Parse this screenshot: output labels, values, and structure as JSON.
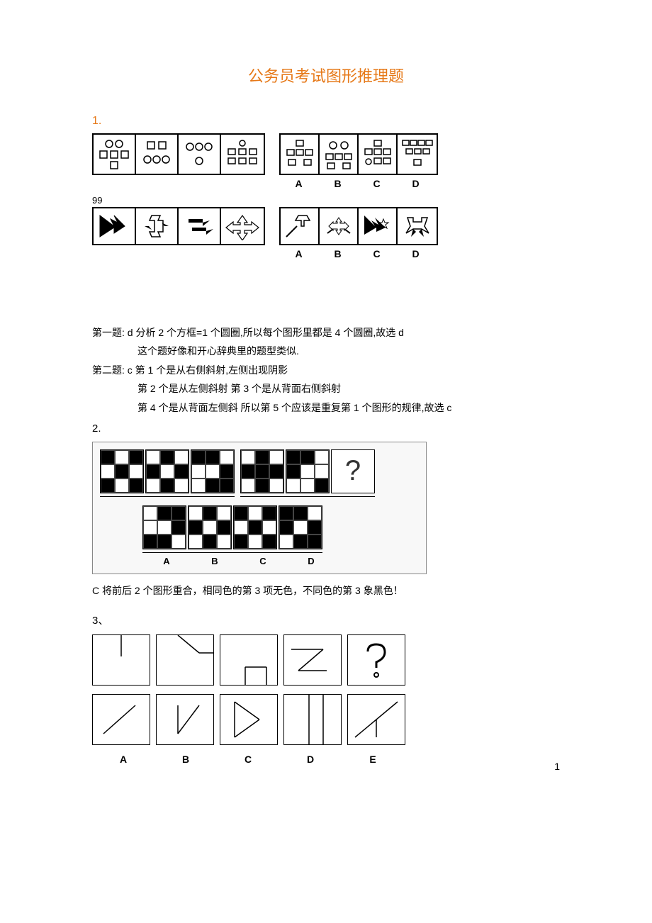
{
  "title": "公务员考试图形推理题",
  "q1": {
    "num": "1."
  },
  "mid_label": "99",
  "answer1": {
    "line1": "第一题: d  分析   2 个方框=1 个圆圈,所以每个图形里都是 4 个圆圈,故选 d",
    "line1b": "这个题好像和开心辞典里的题型类似.",
    "line2": "第二题: c   第 1 个是从右侧斜射,左侧出现阴影",
    "line2b": "第 2 个是从左侧斜射   第 3 个是从背面右侧斜射",
    "line2c": "第 4 个是从背面左侧斜   所以第 5 个应该是重复第 1 个图形的规律,故选 c"
  },
  "q2": {
    "num": "2.",
    "answer": "C 将前后 2 个图形重合，相同色的第 3 项无色，不同色的第 3 象黑色！",
    "labels": [
      "A",
      "B",
      "C",
      "D"
    ],
    "row1_left": [
      [
        "b",
        "w",
        "b",
        "w",
        "b",
        "w",
        "b",
        "w",
        "b"
      ],
      [
        "w",
        "b",
        "w",
        "b",
        "w",
        "b",
        "w",
        "b",
        "w"
      ],
      [
        "b",
        "b",
        "w",
        "w",
        "w",
        "b",
        "w",
        "b",
        "b"
      ]
    ],
    "row1_right": [
      [
        "w",
        "b",
        "w",
        "b",
        "b",
        "b",
        "w",
        "b",
        "w"
      ],
      [
        "b",
        "b",
        "w",
        "b",
        "w",
        "w",
        "w",
        "w",
        "b"
      ]
    ],
    "row2": [
      [
        "w",
        "b",
        "b",
        "w",
        "w",
        "b",
        "b",
        "b",
        "w"
      ],
      [
        "w",
        "b",
        "w",
        "b",
        "w",
        "b",
        "w",
        "b",
        "w"
      ],
      [
        "b",
        "w",
        "b",
        "w",
        "b",
        "w",
        "b",
        "w",
        "b"
      ],
      [
        "b",
        "b",
        "w",
        "b",
        "w",
        "b",
        "w",
        "b",
        "b"
      ]
    ]
  },
  "q3": {
    "num": "3、",
    "labels": [
      "A",
      "B",
      "C",
      "D",
      "E"
    ]
  },
  "opt_labels": [
    "A",
    "B",
    "C",
    "D"
  ],
  "page_num": "1",
  "colors": {
    "accent": "#e67817",
    "text": "#000000",
    "bg": "#ffffff"
  }
}
